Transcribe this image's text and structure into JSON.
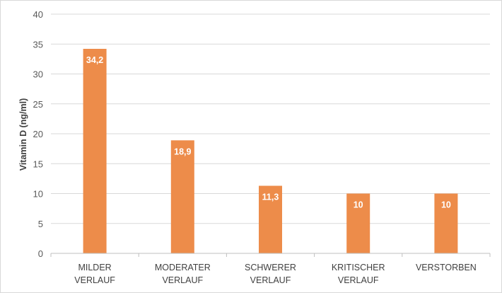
{
  "chart_data": {
    "type": "bar",
    "title": "",
    "xlabel": "",
    "ylabel": "Vitamin D (ng/ml)",
    "categories": [
      [
        "MILDER",
        "VERLAUF"
      ],
      [
        "MODERATER",
        "VERLAUF"
      ],
      [
        "SCHWERER",
        "VERLAUF"
      ],
      [
        "KRITISCHER",
        "VERLAUF"
      ],
      [
        "VERSTORBEN"
      ]
    ],
    "values": [
      34.2,
      18.9,
      11.3,
      10,
      10
    ],
    "data_labels": [
      "34,2",
      "18,9",
      "11,3",
      "10",
      "10"
    ],
    "ylim": [
      0,
      40
    ],
    "yticks": [
      0,
      5,
      10,
      15,
      20,
      25,
      30,
      35,
      40
    ],
    "grid": true,
    "legend": "none",
    "bar_color": "#ED8C4A",
    "grid_color": "#d9d9d9"
  }
}
